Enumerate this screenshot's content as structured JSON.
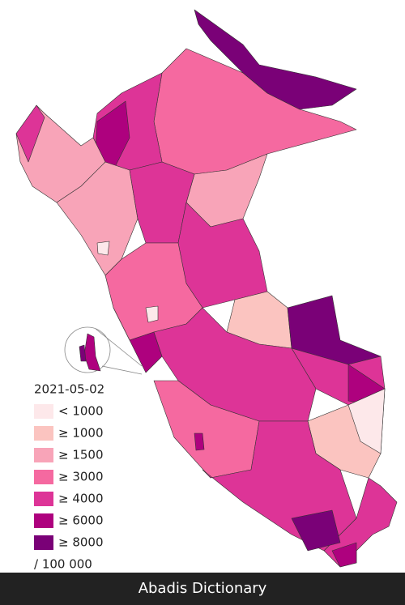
{
  "map": {
    "date": "2021-05-02",
    "legend": {
      "items": [
        {
          "label": "< 1000",
          "color": "#fde8ea"
        },
        {
          "label": "≥ 1000",
          "color": "#fbc4c0"
        },
        {
          "label": "≥ 1500",
          "color": "#f8a4b8"
        },
        {
          "label": "≥ 3000",
          "color": "#f569a0"
        },
        {
          "label": "≥ 4000",
          "color": "#dd3497"
        },
        {
          "label": "≥ 6000",
          "color": "#ae017e"
        },
        {
          "label": "≥ 8000",
          "color": "#7a0177"
        }
      ]
    },
    "unit": "/ 100 000"
  },
  "footer": {
    "text": "Abadis Dictionary"
  }
}
